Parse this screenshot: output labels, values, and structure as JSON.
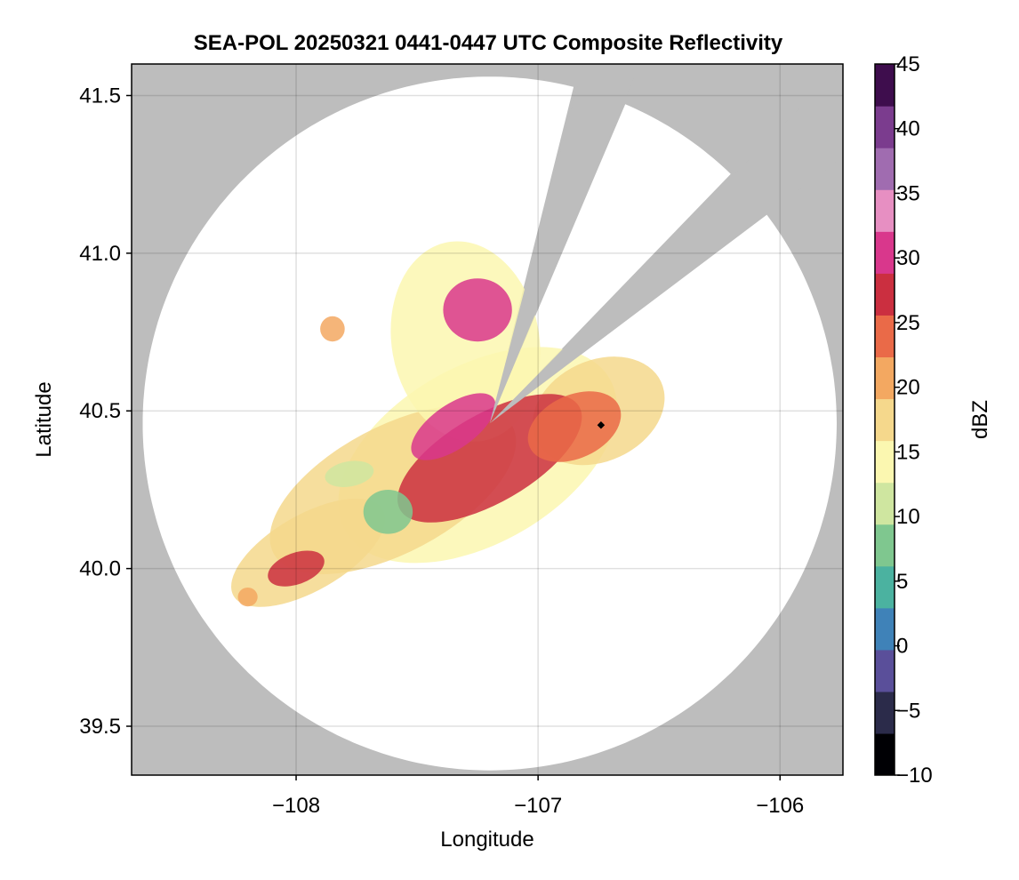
{
  "chart_data": {
    "type": "heatmap",
    "title": "SEA-POL 20250321 0441-0447 UTC Composite Reflectivity",
    "xlabel": "Longitude",
    "ylabel": "Latitude",
    "xlim": [
      -108.68,
      -105.74
    ],
    "ylim": [
      39.345,
      41.6
    ],
    "xticks": [
      -108,
      -107,
      -106
    ],
    "xtick_labels": [
      "−108",
      "−107",
      "−106"
    ],
    "yticks": [
      39.5,
      40.0,
      40.5,
      41.0,
      41.5
    ],
    "ytick_labels": [
      "39.5",
      "40.0",
      "40.5",
      "41.0",
      "41.5"
    ],
    "grid": true,
    "background_color": "#bdbdbd",
    "radar": {
      "center_lon": -107.2,
      "center_lat": 40.46,
      "range_lat_deg": 1.1,
      "blocked_sectors": [
        {
          "from_lon": -106.84,
          "from_lat": 41.52,
          "to_lon": -106.58,
          "to_lat": 41.6
        },
        {
          "from_lon": -106.06,
          "from_lat": 41.12,
          "to_lon": -105.74,
          "to_lat": 41.6
        }
      ]
    },
    "colorbar": {
      "label": "dBZ",
      "min": -10,
      "max": 45,
      "ticks": [
        -10,
        -5,
        0,
        5,
        10,
        15,
        20,
        25,
        30,
        35,
        40,
        45
      ],
      "tick_labels": [
        "−10",
        "−5",
        "0",
        "5",
        "10",
        "15",
        "20",
        "25",
        "30",
        "35",
        "40",
        "45"
      ],
      "colors": [
        "#000004",
        "#2b2b4a",
        "#5a4f9a",
        "#3f82b8",
        "#4bb2a0",
        "#7fc78f",
        "#cfe6a0",
        "#fbf7b0",
        "#f5d88c",
        "#f3a861",
        "#ea6a48",
        "#cb2f40",
        "#d9378c",
        "#e78fc2",
        "#a06cb0",
        "#7b3c8e",
        "#3e0d4d"
      ]
    },
    "echo_regions": [
      {
        "lon": -107.25,
        "lat": 40.36,
        "rx": 0.62,
        "ry": 0.28,
        "angle": -30,
        "dbz": 14
      },
      {
        "lon": -107.6,
        "lat": 40.25,
        "rx": 0.55,
        "ry": 0.2,
        "angle": -28,
        "dbz": 16
      },
      {
        "lon": -107.3,
        "lat": 40.72,
        "rx": 0.3,
        "ry": 0.32,
        "angle": -10,
        "dbz": 15
      },
      {
        "lon": -106.75,
        "lat": 40.5,
        "rx": 0.28,
        "ry": 0.16,
        "angle": -25,
        "dbz": 16
      },
      {
        "lon": -107.95,
        "lat": 40.05,
        "rx": 0.35,
        "ry": 0.12,
        "angle": -30,
        "dbz": 18
      },
      {
        "lon": -107.2,
        "lat": 40.35,
        "rx": 0.42,
        "ry": 0.14,
        "angle": -30,
        "dbz": 26
      },
      {
        "lon": -106.85,
        "lat": 40.45,
        "rx": 0.2,
        "ry": 0.1,
        "angle": -25,
        "dbz": 25
      },
      {
        "lon": -107.25,
        "lat": 40.82,
        "rx": 0.14,
        "ry": 0.1,
        "angle": 0,
        "dbz": 30
      },
      {
        "lon": -107.62,
        "lat": 40.18,
        "rx": 0.1,
        "ry": 0.07,
        "angle": 0,
        "dbz": 8
      },
      {
        "lon": -107.78,
        "lat": 40.3,
        "rx": 0.1,
        "ry": 0.04,
        "angle": -10,
        "dbz": 11
      },
      {
        "lon": -108.0,
        "lat": 40.0,
        "rx": 0.12,
        "ry": 0.05,
        "angle": -20,
        "dbz": 27
      },
      {
        "lon": -107.35,
        "lat": 40.45,
        "rx": 0.2,
        "ry": 0.07,
        "angle": -35,
        "dbz": 31
      },
      {
        "lon": -107.85,
        "lat": 40.76,
        "rx": 0.05,
        "ry": 0.04,
        "angle": 0,
        "dbz": 21
      },
      {
        "lon": -108.2,
        "lat": 39.91,
        "rx": 0.04,
        "ry": 0.03,
        "angle": 0,
        "dbz": 21
      }
    ],
    "station_marker": {
      "lon": -106.74,
      "lat": 40.455
    }
  }
}
